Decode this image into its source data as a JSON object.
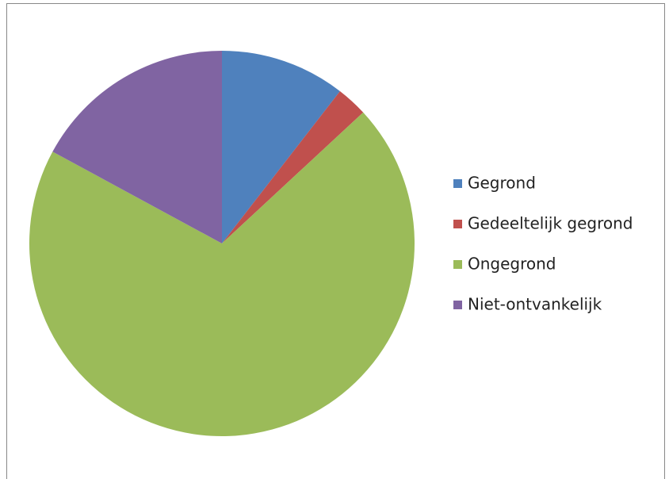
{
  "chart_data": {
    "type": "pie",
    "categories": [
      "Gegrond",
      "Gedeeltelijk gegrond",
      "Ongegrond",
      "Niet-ontvankelijk"
    ],
    "values": [
      10.5,
      2.6,
      69.8,
      17.1
    ],
    "colors": [
      "#4f81bd",
      "#c0504d",
      "#9bbb59",
      "#8064a2"
    ],
    "legend": "right"
  }
}
